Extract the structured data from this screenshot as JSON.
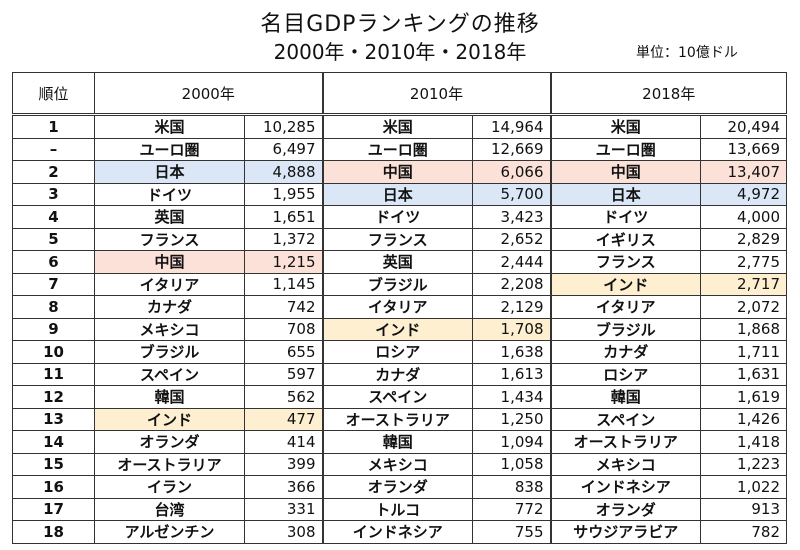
{
  "title": "名目GDPランキングの推移",
  "subtitle": "2000年・2010年・2018年",
  "unit": "単位：10億ドル",
  "colors": {
    "japan": "#dbe7f6",
    "china": "#fbe1d8",
    "india": "#fdefd0"
  },
  "headers": {
    "rank": "順位",
    "y2000": "2000年",
    "y2010": "2010年",
    "y2018": "2018年"
  },
  "rows": [
    {
      "rank": "1",
      "c1": "米国",
      "v1": "10,285",
      "c2": "米国",
      "v2": "14,964",
      "c3": "米国",
      "v3": "20,494"
    },
    {
      "rank": "–",
      "c1": "ユーロ圏",
      "v1": "6,497",
      "c2": "ユーロ圏",
      "v2": "12,669",
      "c3": "ユーロ圏",
      "v3": "13,669"
    },
    {
      "rank": "2",
      "c1": "日本",
      "v1": "4,888",
      "c2": "中国",
      "v2": "6,066",
      "c3": "中国",
      "v3": "13,407"
    },
    {
      "rank": "3",
      "c1": "ドイツ",
      "v1": "1,955",
      "c2": "日本",
      "v2": "5,700",
      "c3": "日本",
      "v3": "4,972"
    },
    {
      "rank": "4",
      "c1": "英国",
      "v1": "1,651",
      "c2": "ドイツ",
      "v2": "3,423",
      "c3": "ドイツ",
      "v3": "4,000"
    },
    {
      "rank": "5",
      "c1": "フランス",
      "v1": "1,372",
      "c2": "フランス",
      "v2": "2,652",
      "c3": "イギリス",
      "v3": "2,829"
    },
    {
      "rank": "6",
      "c1": "中国",
      "v1": "1,215",
      "c2": "英国",
      "v2": "2,444",
      "c3": "フランス",
      "v3": "2,775"
    },
    {
      "rank": "7",
      "c1": "イタリア",
      "v1": "1,145",
      "c2": "ブラジル",
      "v2": "2,208",
      "c3": "インド",
      "v3": "2,717"
    },
    {
      "rank": "8",
      "c1": "カナダ",
      "v1": "742",
      "c2": "イタリア",
      "v2": "2,129",
      "c3": "イタリア",
      "v3": "2,072"
    },
    {
      "rank": "9",
      "c1": "メキシコ",
      "v1": "708",
      "c2": "インド",
      "v2": "1,708",
      "c3": "ブラジル",
      "v3": "1,868"
    },
    {
      "rank": "10",
      "c1": "ブラジル",
      "v1": "655",
      "c2": "ロシア",
      "v2": "1,638",
      "c3": "カナダ",
      "v3": "1,711"
    },
    {
      "rank": "11",
      "c1": "スペイン",
      "v1": "597",
      "c2": "カナダ",
      "v2": "1,613",
      "c3": "ロシア",
      "v3": "1,631"
    },
    {
      "rank": "12",
      "c1": "韓国",
      "v1": "562",
      "c2": "スペイン",
      "v2": "1,434",
      "c3": "韓国",
      "v3": "1,619"
    },
    {
      "rank": "13",
      "c1": "インド",
      "v1": "477",
      "c2": "オーストラリア",
      "v2": "1,250",
      "c3": "スペイン",
      "v3": "1,426"
    },
    {
      "rank": "14",
      "c1": "オランダ",
      "v1": "414",
      "c2": "韓国",
      "v2": "1,094",
      "c3": "オーストラリア",
      "v3": "1,418"
    },
    {
      "rank": "15",
      "c1": "オーストラリア",
      "v1": "399",
      "c2": "メキシコ",
      "v2": "1,058",
      "c3": "メキシコ",
      "v3": "1,223"
    },
    {
      "rank": "16",
      "c1": "イラン",
      "v1": "366",
      "c2": "オランダ",
      "v2": "838",
      "c3": "インドネシア",
      "v3": "1,022"
    },
    {
      "rank": "17",
      "c1": "台湾",
      "v1": "331",
      "c2": "トルコ",
      "v2": "772",
      "c3": "オランダ",
      "v3": "913"
    },
    {
      "rank": "18",
      "c1": "アルゼンチン",
      "v1": "308",
      "c2": "インドネシア",
      "v2": "755",
      "c3": "サウジアラビア",
      "v3": "782"
    }
  ]
}
